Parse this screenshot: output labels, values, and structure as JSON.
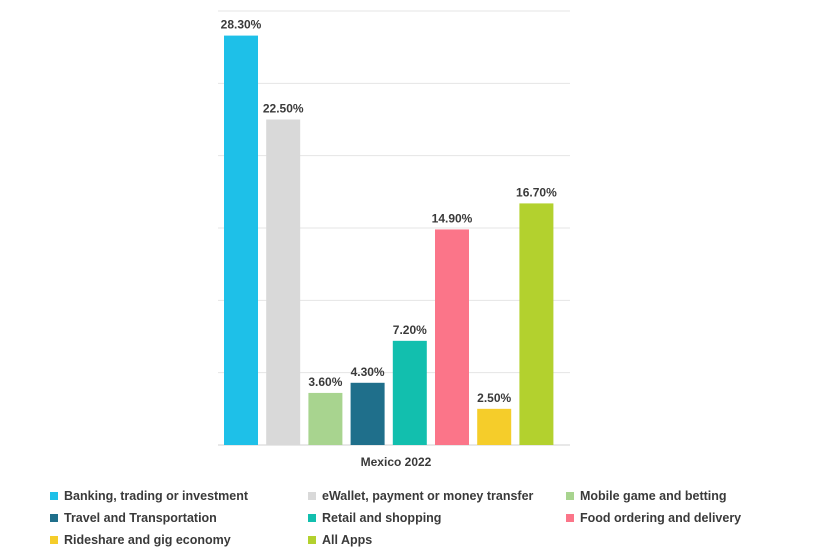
{
  "chart_data": {
    "type": "bar",
    "categories": [
      "Mexico 2022"
    ],
    "xlabel": "Mexico 2022",
    "ylim": [
      0,
      30
    ],
    "grid": true,
    "legend_position": "bottom",
    "series": [
      {
        "name": "Banking, trading or investment",
        "value": 28.3,
        "label": "28.30%",
        "color": "#1ec0e8"
      },
      {
        "name": "eWallet, payment or money transfer",
        "value": 22.5,
        "label": "22.50%",
        "color": "#d9d9d9"
      },
      {
        "name": "Mobile game and betting",
        "value": 3.6,
        "label": "3.60%",
        "color": "#a8d48f"
      },
      {
        "name": "Travel and Transportation",
        "value": 4.3,
        "label": "4.30%",
        "color": "#1f6f8b"
      },
      {
        "name": "Retail and shopping",
        "value": 7.2,
        "label": "7.20%",
        "color": "#12bfae"
      },
      {
        "name": "Food ordering and delivery",
        "value": 14.9,
        "label": "14.90%",
        "color": "#fb7589"
      },
      {
        "name": "Rideshare and gig economy",
        "value": 2.5,
        "label": "2.50%",
        "color": "#f5cd2a"
      },
      {
        "name": "All Apps",
        "value": 16.7,
        "label": "16.70%",
        "color": "#b3d12e"
      }
    ]
  }
}
